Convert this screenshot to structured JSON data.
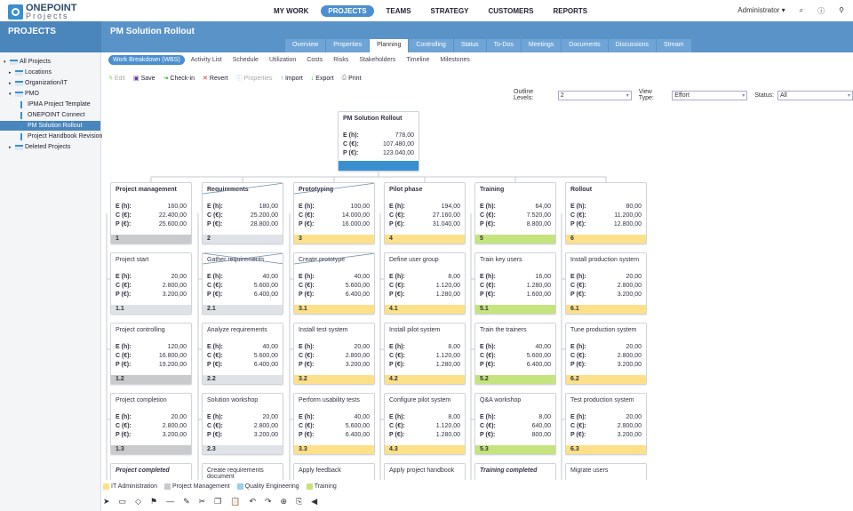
{
  "app": {
    "logo_line1": "ONEPOINT",
    "logo_line2": "Projects"
  },
  "nav": {
    "items": [
      "MY WORK",
      "PROJECTS",
      "TEAMS",
      "STRATEGY",
      "CUSTOMERS",
      "REPORTS"
    ],
    "active": 1,
    "user": "Administrator ▾"
  },
  "header": {
    "section": "PROJECTS",
    "title": "PM Solution Rollout"
  },
  "tabs": {
    "items": [
      "Overview",
      "Properties",
      "Planning",
      "Controlling",
      "Status",
      "To-Dos",
      "Meetings",
      "Documents",
      "Discussions",
      "Stream"
    ],
    "active": 2
  },
  "subnav": {
    "items": [
      "Work Breakdown (WBS)",
      "Activity List",
      "Schedule",
      "Utilization",
      "Costs",
      "Risks",
      "Stakeholders",
      "Timeline",
      "Milestones"
    ],
    "active": 0
  },
  "toolbar": {
    "edit": "Edit",
    "save": "Save",
    "checkin": "Check-in",
    "revert": "Revert",
    "properties": "Properties",
    "import": "Import",
    "export": "Export",
    "print": "Print"
  },
  "filters": {
    "outline_label": "Outline Levels:",
    "outline_value": "2",
    "view_label": "View Type:",
    "view_value": "Effort",
    "status_label": "Status:",
    "status_value": "All"
  },
  "sidebar": {
    "items": [
      {
        "label": "All Projects",
        "level": 0,
        "arrow": "▾"
      },
      {
        "label": "Locations",
        "level": 1,
        "arrow": "▸"
      },
      {
        "label": "Organization/IT",
        "level": 1,
        "arrow": "▸"
      },
      {
        "label": "PMO",
        "level": 1,
        "arrow": "▾"
      },
      {
        "label": "IPMA Project Template",
        "level": 2,
        "arrow": ""
      },
      {
        "label": "ONEPOINT Connect",
        "level": 2,
        "arrow": ""
      },
      {
        "label": "PM Solution Rollout",
        "level": 2,
        "arrow": "",
        "selected": true
      },
      {
        "label": "Project Handbook Revision",
        "level": 2,
        "arrow": ""
      },
      {
        "label": "Deleted Projects",
        "level": 1,
        "arrow": "▸"
      }
    ]
  },
  "labels": {
    "e": "E (h):",
    "c": "C (€):",
    "p": "P (€):"
  },
  "colors": {
    "pm": "#c9cacc",
    "none": "#dfe3e7",
    "it": "#fde08a",
    "training": "#c6e47e",
    "qe": "#9dcdf0",
    "root": "#3a8fd0"
  },
  "root": {
    "title": "PM Solution Rollout",
    "e": "778,00",
    "c": "107.480,00",
    "p": "123.040,00"
  },
  "wbs": [
    [
      {
        "title": "Project management",
        "e": "160,00",
        "c": "22.400,00",
        "p": "25.600,00",
        "code": "1",
        "cat": "pm",
        "type": "sum"
      },
      {
        "title": "Project start",
        "e": "20,00",
        "c": "2.800,00",
        "p": "3.200,00",
        "code": "1.1",
        "cat": "none"
      },
      {
        "title": "Project controlling",
        "e": "120,00",
        "c": "16.800,00",
        "p": "19.200,00",
        "code": "1.2",
        "cat": "pm"
      },
      {
        "title": "Project completion",
        "e": "20,00",
        "c": "2.800,00",
        "p": "3.200,00",
        "code": "1.3",
        "cat": "pm"
      },
      {
        "title": "Project completed",
        "type": "ms"
      }
    ],
    [
      {
        "title": "Requirements",
        "e": "180,00",
        "c": "25.200,00",
        "p": "28.800,00",
        "code": "2",
        "cat": "none",
        "type": "sum",
        "cross": "half"
      },
      {
        "title": "Gather requirements",
        "e": "40,00",
        "c": "5.600,00",
        "p": "6.400,00",
        "code": "2.1",
        "cat": "none",
        "cross": "full"
      },
      {
        "title": "Analyze requirements",
        "e": "40,00",
        "c": "5.600,00",
        "p": "6.400,00",
        "code": "2.2",
        "cat": "none"
      },
      {
        "title": "Solution workshop",
        "e": "20,00",
        "c": "2.800,00",
        "p": "3.200,00",
        "code": "2.3",
        "cat": "none"
      },
      {
        "title": "Create requirements document"
      }
    ],
    [
      {
        "title": "Prototyping",
        "e": "100,00",
        "c": "14.000,00",
        "p": "16.000,00",
        "code": "3",
        "cat": "it",
        "type": "sum",
        "cross": "half"
      },
      {
        "title": "Create prototype",
        "e": "40,00",
        "c": "5.600,00",
        "p": "6.400,00",
        "code": "3.1",
        "cat": "it",
        "cross": "half"
      },
      {
        "title": "Install test system",
        "e": "20,00",
        "c": "2.800,00",
        "p": "3.200,00",
        "code": "3.2",
        "cat": "it"
      },
      {
        "title": "Perform usability tests",
        "e": "40,00",
        "c": "5.600,00",
        "p": "6.400,00",
        "code": "3.3",
        "cat": "it"
      },
      {
        "title": "Apply feedback"
      }
    ],
    [
      {
        "title": "Pilot phase",
        "e": "194,00",
        "c": "27.160,00",
        "p": "31.040,00",
        "code": "4",
        "cat": "it",
        "type": "sum"
      },
      {
        "title": "Define user group",
        "e": "8,00",
        "c": "1.120,00",
        "p": "1.280,00",
        "code": "4.1",
        "cat": "it"
      },
      {
        "title": "Install pilot system",
        "e": "8,00",
        "c": "1.120,00",
        "p": "1.280,00",
        "code": "4.2",
        "cat": "it"
      },
      {
        "title": "Configure pilot system",
        "e": "8,00",
        "c": "1.120,00",
        "p": "1.280,00",
        "code": "4.3",
        "cat": "it"
      },
      {
        "title": "Apply project handbook"
      }
    ],
    [
      {
        "title": "Training",
        "e": "64,00",
        "c": "7.520,00",
        "p": "8.800,00",
        "code": "5",
        "cat": "training",
        "type": "sum"
      },
      {
        "title": "Train key users",
        "e": "16,00",
        "c": "1.280,00",
        "p": "1.600,00",
        "code": "5.1",
        "cat": "training"
      },
      {
        "title": "Train the trainers",
        "e": "40,00",
        "c": "5.600,00",
        "p": "6.400,00",
        "code": "5.2",
        "cat": "training"
      },
      {
        "title": "Q&A workshop",
        "e": "8,00",
        "c": "640,00",
        "p": "800,00",
        "code": "5.3",
        "cat": "training"
      },
      {
        "title": "Training completed",
        "type": "ms"
      }
    ],
    [
      {
        "title": "Rollout",
        "e": "80,00",
        "c": "11.200,00",
        "p": "12.800,00",
        "code": "6",
        "cat": "it",
        "type": "sum"
      },
      {
        "title": "Install production system",
        "e": "20,00",
        "c": "2.800,00",
        "p": "3.200,00",
        "code": "6.1",
        "cat": "it"
      },
      {
        "title": "Tune production system",
        "e": "20,00",
        "c": "2.800,00",
        "p": "3.200,00",
        "code": "6.2",
        "cat": "it"
      },
      {
        "title": "Test production system",
        "e": "20,00",
        "c": "2.800,00",
        "p": "3.200,00",
        "code": "6.3",
        "cat": "it"
      },
      {
        "title": "Migrate users"
      }
    ]
  ],
  "legend": [
    {
      "label": "IT Administration",
      "cat": "it"
    },
    {
      "label": "Project Management",
      "cat": "pm"
    },
    {
      "label": "Quality Engineering",
      "cat": "qe"
    },
    {
      "label": "Training",
      "cat": "training"
    }
  ],
  "bottom_tools": [
    "select-tool",
    "task-tool",
    "milestone-tool",
    "flag-tool",
    "line-tool",
    "pencil-tool",
    "cut-tool",
    "copy-tool",
    "paste-tool",
    "undo-tool",
    "redo-tool",
    "expand-tool",
    "page-tool",
    "send-tool"
  ]
}
